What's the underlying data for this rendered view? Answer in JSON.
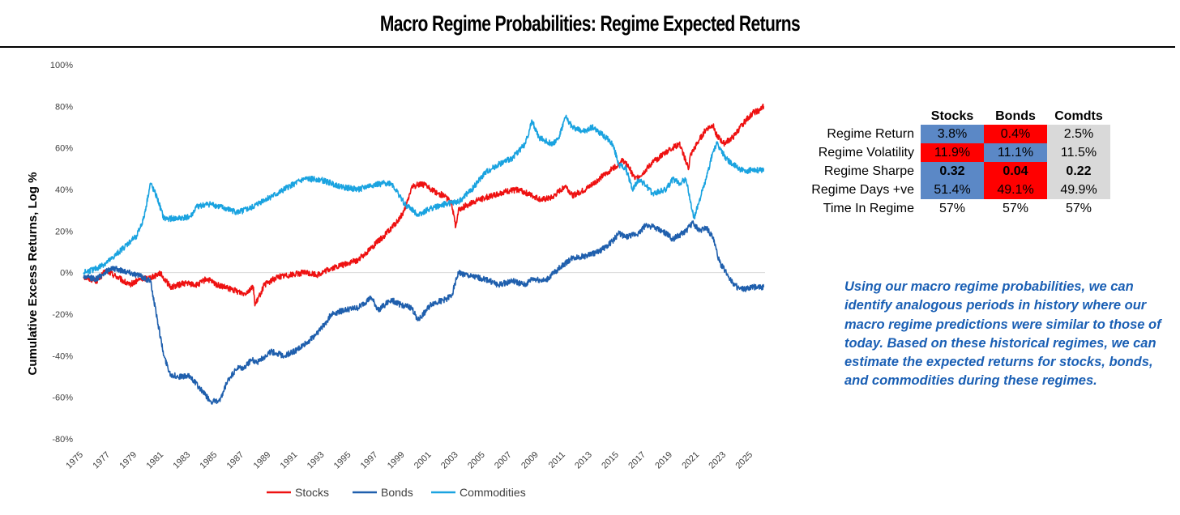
{
  "title": "Macro Regime Probabilities: Regime Expected Returns",
  "colors": {
    "stocks": "#ee1111",
    "bonds": "#1f5fad",
    "commodities": "#1aa3e0",
    "high": "#ff0000",
    "mid": "#5b88c6",
    "low": "#d9d9d9",
    "note": "#1a5fb4"
  },
  "chart_data": {
    "type": "line",
    "title": "",
    "xlabel": "",
    "ylabel": "Cumulative Excess Returns, Log %",
    "ylim": [
      -0.8,
      1.0
    ],
    "xlim": [
      1975,
      2025.9
    ],
    "yticks": [
      -0.8,
      -0.6,
      -0.4,
      -0.2,
      0,
      0.2,
      0.4,
      0.6,
      0.8,
      1.0
    ],
    "ytick_labels": [
      "-80%",
      "-60%",
      "-40%",
      "-20%",
      "0%",
      "20%",
      "40%",
      "60%",
      "80%",
      "100%"
    ],
    "xtick_labels": [
      "1975",
      "1977",
      "1979",
      "1981",
      "1983",
      "1985",
      "1987",
      "1989",
      "1991",
      "1993",
      "1995",
      "1997",
      "1999",
      "2001",
      "2003",
      "2005",
      "2007",
      "2009",
      "2011",
      "2013",
      "2015",
      "2017",
      "2019",
      "2021",
      "2023",
      "2025"
    ],
    "legend": "bottom-center",
    "series": [
      {
        "name": "Stocks",
        "color": "#ee1111",
        "x": [
          1975.0,
          1976.0,
          1976.7,
          1977.5,
          1978.4,
          1979.3,
          1980.2,
          1980.7,
          1981.5,
          1982.6,
          1983.5,
          1984.2,
          1985.0,
          1986.0,
          1987.0,
          1987.7,
          1987.8,
          1988.5,
          1989.5,
          1990.5,
          1991.5,
          1992.5,
          1993.5,
          1994.5,
          1995.5,
          1996.5,
          1997.5,
          1998.5,
          1999.0,
          1999.5,
          2000.2,
          2001.0,
          2001.5,
          2002.0,
          2002.5,
          2002.8,
          2003.0,
          2003.5,
          2004.5,
          2005.5,
          2006.5,
          2007.5,
          2008.5,
          2009.2,
          2010.0,
          2010.5,
          2011.0,
          2011.5,
          2012.5,
          2013.5,
          2014.5,
          2015.3,
          2015.7,
          2016.2,
          2016.8,
          2017.5,
          2018.5,
          2019.0,
          2019.5,
          2020.2,
          2020.3,
          2021.0,
          2021.5,
          2022.0,
          2022.3,
          2022.8,
          2023.5,
          2024.3,
          2025.0,
          2025.5,
          2025.8
        ],
        "y": [
          -0.02,
          -0.04,
          0.01,
          -0.02,
          -0.06,
          -0.03,
          -0.02,
          0.0,
          -0.07,
          -0.05,
          -0.06,
          -0.03,
          -0.06,
          -0.08,
          -0.1,
          -0.07,
          -0.16,
          -0.06,
          -0.02,
          -0.01,
          0.0,
          -0.01,
          0.02,
          0.04,
          0.06,
          0.12,
          0.18,
          0.25,
          0.3,
          0.41,
          0.43,
          0.4,
          0.38,
          0.37,
          0.33,
          0.22,
          0.3,
          0.32,
          0.35,
          0.37,
          0.39,
          0.4,
          0.37,
          0.35,
          0.36,
          0.39,
          0.42,
          0.37,
          0.4,
          0.45,
          0.5,
          0.54,
          0.51,
          0.45,
          0.48,
          0.53,
          0.58,
          0.6,
          0.62,
          0.5,
          0.56,
          0.64,
          0.69,
          0.71,
          0.66,
          0.62,
          0.65,
          0.72,
          0.77,
          0.78,
          0.8
        ]
      },
      {
        "name": "Bonds",
        "color": "#1f5fad",
        "x": [
          1975.0,
          1976.0,
          1977.0,
          1978.0,
          1979.0,
          1980.0,
          1980.5,
          1981.0,
          1981.5,
          1982.0,
          1983.0,
          1983.6,
          1984.5,
          1985.2,
          1985.7,
          1986.0,
          1986.5,
          1987.0,
          1987.5,
          1988.0,
          1989.0,
          1990.0,
          1991.0,
          1992.0,
          1993.0,
          1993.5,
          1994.5,
          1995.5,
          1996.5,
          1997.0,
          1998.0,
          1998.5,
          1999.5,
          2000.0,
          2001.0,
          2002.0,
          2002.5,
          2003.0,
          2004.0,
          2005.0,
          2006.0,
          2007.0,
          2008.0,
          2008.5,
          2009.5,
          2010.5,
          2011.5,
          2012.5,
          2013.5,
          2014.5,
          2015.0,
          2015.5,
          2016.5,
          2017.0,
          2017.5,
          2018.5,
          2019.0,
          2020.0,
          2020.5,
          2021.0,
          2021.5,
          2022.0,
          2022.5,
          2023.0,
          2023.5,
          2024.0,
          2024.5,
          2025.0,
          2025.8
        ],
        "y": [
          -0.02,
          -0.03,
          0.02,
          0.01,
          -0.01,
          -0.04,
          -0.22,
          -0.4,
          -0.49,
          -0.5,
          -0.5,
          -0.55,
          -0.62,
          -0.62,
          -0.53,
          -0.5,
          -0.46,
          -0.46,
          -0.42,
          -0.43,
          -0.38,
          -0.4,
          -0.37,
          -0.32,
          -0.25,
          -0.2,
          -0.18,
          -0.17,
          -0.12,
          -0.18,
          -0.13,
          -0.15,
          -0.17,
          -0.23,
          -0.15,
          -0.13,
          -0.11,
          0.0,
          -0.02,
          -0.03,
          -0.06,
          -0.04,
          -0.06,
          -0.03,
          -0.04,
          0.02,
          0.07,
          0.08,
          0.1,
          0.15,
          0.19,
          0.17,
          0.19,
          0.23,
          0.22,
          0.19,
          0.16,
          0.2,
          0.24,
          0.2,
          0.22,
          0.17,
          0.05,
          0.0,
          -0.05,
          -0.08,
          -0.08,
          -0.07,
          -0.07
        ]
      },
      {
        "name": "Commodities",
        "color": "#1aa3e0",
        "x": [
          1975.0,
          1976.0,
          1977.0,
          1978.0,
          1979.0,
          1979.5,
          1980.0,
          1980.5,
          1981.0,
          1982.0,
          1983.0,
          1983.5,
          1984.5,
          1985.5,
          1986.5,
          1987.5,
          1988.5,
          1989.5,
          1990.5,
          1991.5,
          1992.5,
          1993.5,
          1994.5,
          1995.5,
          1996.5,
          1997.5,
          1998.0,
          1998.5,
          1999.0,
          2000.0,
          2001.0,
          2002.0,
          2003.0,
          2004.0,
          2005.0,
          2006.0,
          2007.0,
          2008.0,
          2008.5,
          2009.0,
          2010.0,
          2010.5,
          2011.0,
          2011.5,
          2012.5,
          2013.0,
          2014.0,
          2014.5,
          2015.0,
          2015.5,
          2016.0,
          2016.5,
          2017.0,
          2017.5,
          2018.5,
          2019.0,
          2019.5,
          2020.0,
          2020.3,
          2020.6,
          2021.0,
          2021.5,
          2022.0,
          2022.3,
          2023.0,
          2023.5,
          2024.0,
          2024.5,
          2025.0,
          2025.5,
          2025.8
        ],
        "y": [
          0.0,
          0.02,
          0.06,
          0.12,
          0.18,
          0.26,
          0.43,
          0.36,
          0.26,
          0.26,
          0.27,
          0.32,
          0.33,
          0.31,
          0.29,
          0.31,
          0.35,
          0.38,
          0.42,
          0.45,
          0.45,
          0.43,
          0.41,
          0.4,
          0.42,
          0.43,
          0.43,
          0.38,
          0.33,
          0.28,
          0.31,
          0.33,
          0.34,
          0.4,
          0.48,
          0.52,
          0.55,
          0.62,
          0.73,
          0.65,
          0.62,
          0.65,
          0.75,
          0.7,
          0.68,
          0.7,
          0.65,
          0.62,
          0.52,
          0.5,
          0.4,
          0.45,
          0.42,
          0.38,
          0.4,
          0.45,
          0.43,
          0.45,
          0.35,
          0.26,
          0.35,
          0.45,
          0.58,
          0.62,
          0.55,
          0.52,
          0.5,
          0.48,
          0.5,
          0.49,
          0.5
        ]
      }
    ]
  },
  "table": {
    "headers": [
      "Stocks",
      "Bonds",
      "Comdts"
    ],
    "rows": [
      {
        "label": "Regime Return",
        "cells": [
          "3.8%",
          "0.4%",
          "2.5%"
        ],
        "levels": [
          "mid",
          "high",
          "low"
        ],
        "bold": false
      },
      {
        "label": "Regime Volatility",
        "cells": [
          "11.9%",
          "11.1%",
          "11.5%"
        ],
        "levels": [
          "high",
          "mid",
          "low"
        ],
        "bold": false
      },
      {
        "label": "Regime Sharpe",
        "cells": [
          "0.32",
          "0.04",
          "0.22"
        ],
        "levels": [
          "mid",
          "high",
          "low"
        ],
        "bold": true
      },
      {
        "label": "Regime Days +ve",
        "cells": [
          "51.4%",
          "49.1%",
          "49.9%"
        ],
        "levels": [
          "mid",
          "high",
          "low"
        ],
        "bold": false
      },
      {
        "label": "Time In Regime",
        "cells": [
          "57%",
          "57%",
          "57%"
        ],
        "levels": [
          "none",
          "none",
          "none"
        ],
        "bold": false
      }
    ]
  },
  "note": "Using our macro regime probabilities, we can identify analogous periods in history where our macro regime predictions were similar to those of today. Based on these historical regimes, we can estimate the expected returns for stocks, bonds, and commodities during these regimes."
}
